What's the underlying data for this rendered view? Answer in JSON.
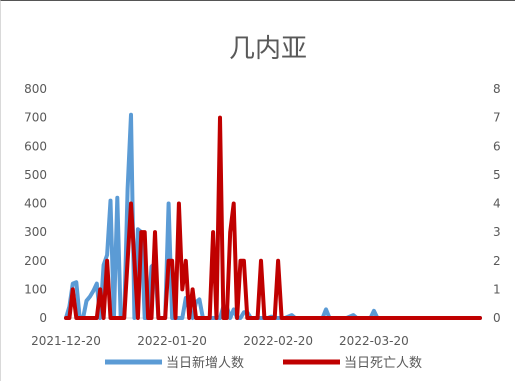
{
  "chart_data": {
    "type": "line",
    "title": "几内亚",
    "x_start": "2021-12-20",
    "x_end": "2022-04-20",
    "x_tick_labels": [
      "2021-12-20",
      "2022-01-20",
      "2022-02-20",
      "2022-03-20"
    ],
    "y_left_ticks": [
      "0",
      "100",
      "200",
      "300",
      "400",
      "500",
      "600",
      "700",
      "800"
    ],
    "y_right_ticks": [
      "0",
      "1",
      "2",
      "3",
      "4",
      "5",
      "6",
      "7",
      "8"
    ],
    "ylim_left": [
      0,
      800
    ],
    "ylim_right": [
      0,
      8
    ],
    "legend_position": "bottom",
    "grid": false,
    "series": [
      {
        "name": "当日新增人数",
        "axis": "left",
        "color": "#5b9bd5",
        "points": [
          [
            "2021-12-20",
            0
          ],
          [
            "2021-12-21",
            40
          ],
          [
            "2021-12-22",
            120
          ],
          [
            "2021-12-23",
            125
          ],
          [
            "2021-12-24",
            0
          ],
          [
            "2021-12-25",
            0
          ],
          [
            "2021-12-26",
            60
          ],
          [
            "2021-12-27",
            75
          ],
          [
            "2021-12-28",
            95
          ],
          [
            "2021-12-29",
            120
          ],
          [
            "2021-12-30",
            0
          ],
          [
            "2021-12-31",
            185
          ],
          [
            "2022-01-01",
            220
          ],
          [
            "2022-01-02",
            410
          ],
          [
            "2022-01-03",
            0
          ],
          [
            "2022-01-04",
            420
          ],
          [
            "2022-01-05",
            0
          ],
          [
            "2022-01-06",
            0
          ],
          [
            "2022-01-07",
            450
          ],
          [
            "2022-01-08",
            710
          ],
          [
            "2022-01-09",
            0
          ],
          [
            "2022-01-10",
            310
          ],
          [
            "2022-01-11",
            300
          ],
          [
            "2022-01-12",
            0
          ],
          [
            "2022-01-13",
            0
          ],
          [
            "2022-01-14",
            180
          ],
          [
            "2022-01-15",
            190
          ],
          [
            "2022-01-16",
            0
          ],
          [
            "2022-01-17",
            0
          ],
          [
            "2022-01-18",
            0
          ],
          [
            "2022-01-19",
            400
          ],
          [
            "2022-01-20",
            0
          ],
          [
            "2022-01-21",
            0
          ],
          [
            "2022-01-22",
            0
          ],
          [
            "2022-01-23",
            0
          ],
          [
            "2022-01-24",
            70
          ],
          [
            "2022-01-25",
            30
          ],
          [
            "2022-01-26",
            0
          ],
          [
            "2022-01-27",
            55
          ],
          [
            "2022-01-28",
            65
          ],
          [
            "2022-01-29",
            0
          ],
          [
            "2022-01-30",
            0
          ],
          [
            "2022-01-31",
            0
          ],
          [
            "2022-02-01",
            0
          ],
          [
            "2022-02-02",
            0
          ],
          [
            "2022-02-03",
            0
          ],
          [
            "2022-02-04",
            40
          ],
          [
            "2022-02-05",
            40
          ],
          [
            "2022-02-06",
            0
          ],
          [
            "2022-02-07",
            30
          ],
          [
            "2022-02-08",
            0
          ],
          [
            "2022-02-09",
            0
          ],
          [
            "2022-02-10",
            20
          ],
          [
            "2022-02-11",
            20
          ],
          [
            "2022-02-12",
            0
          ],
          [
            "2022-02-13",
            0
          ],
          [
            "2022-02-14",
            0
          ],
          [
            "2022-02-15",
            0
          ],
          [
            "2022-02-16",
            0
          ],
          [
            "2022-02-17",
            0
          ],
          [
            "2022-02-18",
            5
          ],
          [
            "2022-02-19",
            0
          ],
          [
            "2022-02-20",
            0
          ],
          [
            "2022-02-22",
            0
          ],
          [
            "2022-02-24",
            10
          ],
          [
            "2022-02-25",
            0
          ],
          [
            "2022-03-01",
            0
          ],
          [
            "2022-03-03",
            0
          ],
          [
            "2022-03-05",
            0
          ],
          [
            "2022-03-06",
            30
          ],
          [
            "2022-03-07",
            0
          ],
          [
            "2022-03-10",
            0
          ],
          [
            "2022-03-12",
            0
          ],
          [
            "2022-03-14",
            10
          ],
          [
            "2022-03-15",
            0
          ],
          [
            "2022-03-19",
            0
          ],
          [
            "2022-03-20",
            25
          ],
          [
            "2022-03-21",
            0
          ],
          [
            "2022-04-01",
            0
          ],
          [
            "2022-04-20",
            0
          ]
        ]
      },
      {
        "name": "当日死亡人数",
        "axis": "right",
        "color": "#c00000",
        "points": [
          [
            "2021-12-20",
            0
          ],
          [
            "2021-12-21",
            0
          ],
          [
            "2021-12-22",
            1
          ],
          [
            "2021-12-23",
            0
          ],
          [
            "2021-12-29",
            0
          ],
          [
            "2021-12-30",
            1
          ],
          [
            "2021-12-31",
            0
          ],
          [
            "2022-01-01",
            2
          ],
          [
            "2022-01-02",
            0
          ],
          [
            "2022-01-06",
            0
          ],
          [
            "2022-01-07",
            2
          ],
          [
            "2022-01-08",
            4
          ],
          [
            "2022-01-09",
            2
          ],
          [
            "2022-01-10",
            0
          ],
          [
            "2022-01-11",
            3
          ],
          [
            "2022-01-12",
            3
          ],
          [
            "2022-01-13",
            0
          ],
          [
            "2022-01-14",
            0
          ],
          [
            "2022-01-15",
            3
          ],
          [
            "2022-01-16",
            0
          ],
          [
            "2022-01-18",
            0
          ],
          [
            "2022-01-19",
            2
          ],
          [
            "2022-01-20",
            2
          ],
          [
            "2022-01-21",
            0
          ],
          [
            "2022-01-22",
            4
          ],
          [
            "2022-01-23",
            1
          ],
          [
            "2022-01-24",
            2
          ],
          [
            "2022-01-25",
            0
          ],
          [
            "2022-01-26",
            1
          ],
          [
            "2022-01-27",
            0
          ],
          [
            "2022-01-31",
            0
          ],
          [
            "2022-02-01",
            3
          ],
          [
            "2022-02-02",
            0
          ],
          [
            "2022-02-03",
            7
          ],
          [
            "2022-02-04",
            0
          ],
          [
            "2022-02-05",
            0
          ],
          [
            "2022-02-06",
            3
          ],
          [
            "2022-02-07",
            4
          ],
          [
            "2022-02-08",
            0
          ],
          [
            "2022-02-09",
            2
          ],
          [
            "2022-02-10",
            2
          ],
          [
            "2022-02-11",
            0
          ],
          [
            "2022-02-14",
            0
          ],
          [
            "2022-02-15",
            2
          ],
          [
            "2022-02-16",
            0
          ],
          [
            "2022-02-19",
            0
          ],
          [
            "2022-02-20",
            2
          ],
          [
            "2022-02-21",
            0
          ],
          [
            "2022-04-20",
            0
          ]
        ]
      }
    ]
  }
}
